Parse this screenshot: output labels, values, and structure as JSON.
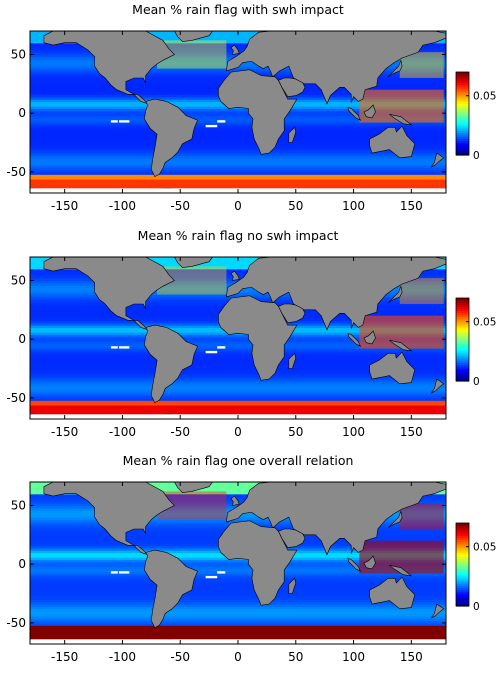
{
  "figure": {
    "panels": [
      {
        "title": "Mean % rain flag with swh impact",
        "intensity": 0.55
      },
      {
        "title": "Mean % rain flag no swh impact",
        "intensity": 0.65
      },
      {
        "title": "Mean % rain flag one overall relation",
        "intensity": 1.0
      }
    ],
    "x_tick_labels": [
      "-150",
      "-100",
      "-50",
      "0",
      "50",
      "100",
      "150"
    ],
    "y_tick_labels": [
      "50",
      "0",
      "-50"
    ],
    "colorbar_tick_labels": [
      "0.05",
      "0"
    ],
    "colors": {
      "land": "#8a8a8a",
      "ocean_low": "#0000b4",
      "ocean_mid": "#2a6cff",
      "band": "#00d4ff",
      "high": "#800000",
      "frame": "#000000"
    }
  },
  "chart_data": {
    "type": "heatmap",
    "x_range": [
      -180,
      180
    ],
    "y_range": [
      -68,
      70
    ],
    "x_ticks": [
      -150,
      -100,
      -50,
      0,
      50,
      100,
      150
    ],
    "y_ticks": [
      50,
      0,
      -50
    ],
    "colorbar_range": [
      0,
      0.07
    ],
    "colorbar_ticks": [
      0,
      0.05
    ],
    "colormap": "jet"
  }
}
